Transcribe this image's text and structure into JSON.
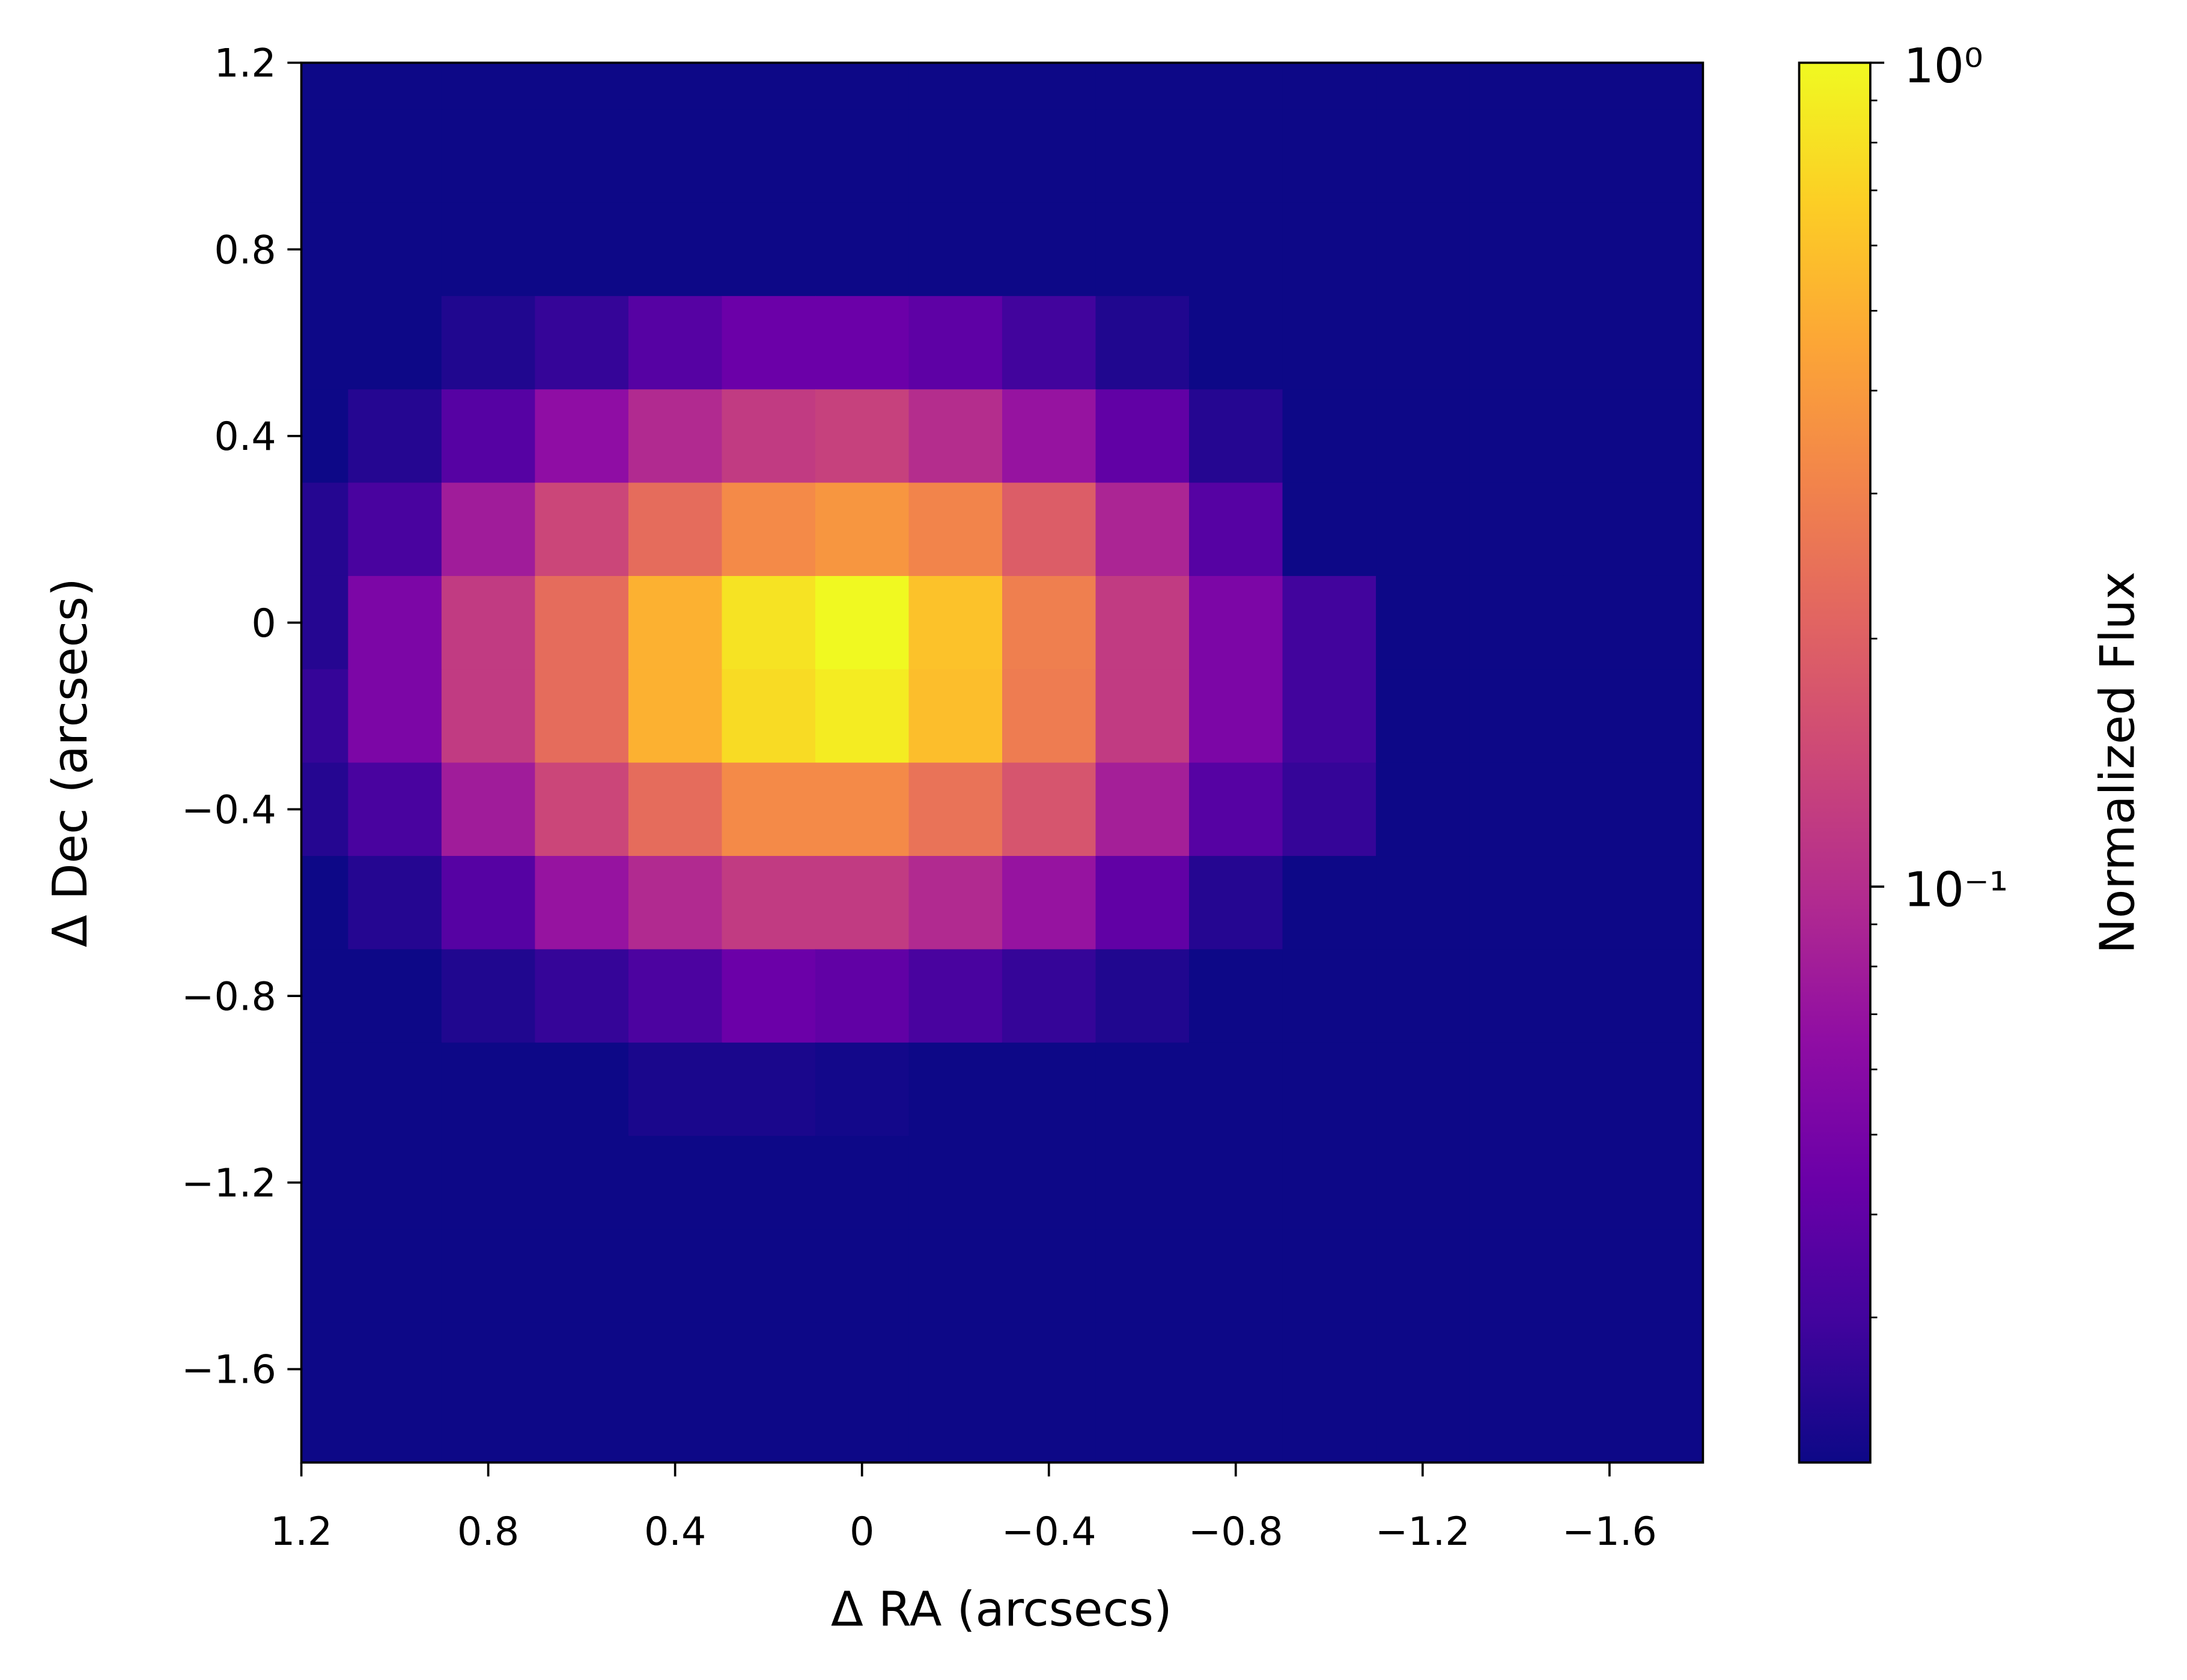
{
  "chart_data": {
    "type": "heatmap",
    "x_label": "Δ RA (arcsecs)",
    "y_label": "Δ Dec (arcsecs)",
    "colorbar_label": "Normalized Flux",
    "colormap": "plasma",
    "color_scale": "log",
    "clim": [
      0.02,
      1
    ],
    "colorbar_ticks": [
      {
        "value": 1,
        "label": "10⁰"
      },
      {
        "value": 0.1,
        "label": "10⁻¹"
      }
    ],
    "colorbar_minor_ticks": [
      0.03,
      0.04,
      0.05,
      0.06,
      0.07,
      0.08,
      0.09,
      0.2,
      0.3,
      0.4,
      0.5,
      0.6,
      0.7,
      0.8,
      0.9
    ],
    "xlim": [
      1.2,
      -1.8
    ],
    "ylim": [
      -1.8,
      1.2
    ],
    "xticks": [
      1.2,
      0.8,
      0.4,
      0,
      {
        "value": -0.4,
        "label": "−0.4"
      },
      {
        "value": -0.8,
        "label": "−0.8"
      },
      {
        "value": -1.2,
        "label": "−1.2"
      },
      {
        "value": -1.6,
        "label": "−1.6"
      }
    ],
    "yticks": [
      1.2,
      0.8,
      0.4,
      0,
      {
        "value": -0.4,
        "label": "−0.4"
      },
      {
        "value": -0.8,
        "label": "−0.8"
      },
      {
        "value": -1.2,
        "label": "−1.2"
      },
      {
        "value": -1.6,
        "label": "−1.6"
      }
    ],
    "x": [
      1.2,
      1.0,
      0.8,
      0.6,
      0.4,
      0.2,
      0,
      -0.2,
      -0.4,
      -0.6,
      -0.8,
      -1.0,
      -1.2,
      -1.4,
      -1.6,
      -1.8
    ],
    "y": [
      1.2,
      1.0,
      0.8,
      0.6,
      0.4,
      0.2,
      0,
      -0.2,
      -0.4,
      -0.6,
      -0.8,
      -1.0,
      -1.2,
      -1.4,
      -1.6,
      -1.8
    ],
    "z": [
      [
        0.02,
        0.02,
        0.02,
        0.02,
        0.02,
        0.02,
        0.02,
        0.02,
        0.02,
        0.02,
        0.02,
        0.02,
        0.02,
        0.02,
        0.02,
        0.02
      ],
      [
        0.02,
        0.02,
        0.02,
        0.02,
        0.02,
        0.02,
        0.02,
        0.02,
        0.02,
        0.02,
        0.02,
        0.02,
        0.02,
        0.02,
        0.02,
        0.02
      ],
      [
        0.02,
        0.02,
        0.02,
        0.02,
        0.02,
        0.02,
        0.02,
        0.02,
        0.02,
        0.02,
        0.02,
        0.02,
        0.02,
        0.02,
        0.02,
        0.02
      ],
      [
        0.02,
        0.02,
        0.023,
        0.027,
        0.036,
        0.044,
        0.044,
        0.039,
        0.03,
        0.023,
        0.02,
        0.02,
        0.02,
        0.02,
        0.02,
        0.02
      ],
      [
        0.02,
        0.024,
        0.036,
        0.065,
        0.096,
        0.12,
        0.13,
        0.1,
        0.07,
        0.04,
        0.024,
        0.02,
        0.02,
        0.02,
        0.02,
        0.02
      ],
      [
        0.024,
        0.032,
        0.079,
        0.14,
        0.23,
        0.33,
        0.38,
        0.31,
        0.19,
        0.089,
        0.036,
        0.02,
        0.02,
        0.02,
        0.02,
        0.02
      ],
      [
        0.024,
        0.053,
        0.12,
        0.23,
        0.51,
        0.82,
        1,
        0.6,
        0.29,
        0.12,
        0.053,
        0.03,
        0.02,
        0.02,
        0.02,
        0.02
      ],
      [
        0.027,
        0.053,
        0.12,
        0.23,
        0.51,
        0.76,
        0.89,
        0.58,
        0.28,
        0.12,
        0.053,
        0.03,
        0.02,
        0.02,
        0.02,
        0.02
      ],
      [
        0.024,
        0.032,
        0.079,
        0.14,
        0.23,
        0.33,
        0.33,
        0.25,
        0.17,
        0.082,
        0.036,
        0.027,
        0.02,
        0.02,
        0.02,
        0.02
      ],
      [
        0.02,
        0.024,
        0.036,
        0.07,
        0.096,
        0.12,
        0.12,
        0.096,
        0.07,
        0.04,
        0.024,
        0.02,
        0.02,
        0.02,
        0.02,
        0.02
      ],
      [
        0.02,
        0.02,
        0.023,
        0.027,
        0.033,
        0.044,
        0.04,
        0.032,
        0.027,
        0.023,
        0.02,
        0.02,
        0.02,
        0.02,
        0.02,
        0.02
      ],
      [
        0.02,
        0.02,
        0.02,
        0.02,
        0.022,
        0.022,
        0.021,
        0.02,
        0.02,
        0.02,
        0.02,
        0.02,
        0.02,
        0.02,
        0.02,
        0.02
      ],
      [
        0.02,
        0.02,
        0.02,
        0.02,
        0.02,
        0.02,
        0.02,
        0.02,
        0.02,
        0.02,
        0.02,
        0.02,
        0.02,
        0.02,
        0.02,
        0.02
      ],
      [
        0.02,
        0.02,
        0.02,
        0.02,
        0.02,
        0.02,
        0.02,
        0.02,
        0.02,
        0.02,
        0.02,
        0.02,
        0.02,
        0.02,
        0.02,
        0.02
      ],
      [
        0.02,
        0.02,
        0.02,
        0.02,
        0.02,
        0.02,
        0.02,
        0.02,
        0.02,
        0.02,
        0.02,
        0.02,
        0.02,
        0.02,
        0.02,
        0.02
      ],
      [
        0.02,
        0.02,
        0.02,
        0.02,
        0.02,
        0.02,
        0.02,
        0.02,
        0.02,
        0.02,
        0.02,
        0.02,
        0.02,
        0.02,
        0.02,
        0.02
      ]
    ]
  }
}
